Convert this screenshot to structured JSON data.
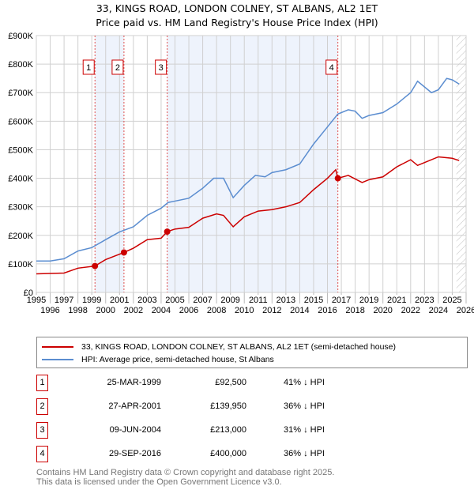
{
  "chart_data": {
    "type": "line",
    "title": "33, KINGS ROAD, LONDON COLNEY, ST ALBANS, AL2 1ET",
    "subtitle": "Price paid vs. HM Land Registry's House Price Index (HPI)",
    "xlim": [
      1995,
      2026
    ],
    "ylim": [
      0,
      900000
    ],
    "yticks": [
      {
        "v": 0,
        "l": "£0"
      },
      {
        "v": 100000,
        "l": "£100K"
      },
      {
        "v": 200000,
        "l": "£200K"
      },
      {
        "v": 300000,
        "l": "£300K"
      },
      {
        "v": 400000,
        "l": "£400K"
      },
      {
        "v": 500000,
        "l": "£500K"
      },
      {
        "v": 600000,
        "l": "£600K"
      },
      {
        "v": 700000,
        "l": "£700K"
      },
      {
        "v": 800000,
        "l": "£800K"
      },
      {
        "v": 900000,
        "l": "£900K"
      }
    ],
    "xticks": [
      "1995",
      "1996",
      "1997",
      "1998",
      "1999",
      "2000",
      "2001",
      "2002",
      "2003",
      "2004",
      "2005",
      "2006",
      "2007",
      "2008",
      "2009",
      "2010",
      "2011",
      "2012",
      "2013",
      "2014",
      "2015",
      "2016",
      "2017",
      "2018",
      "2019",
      "2020",
      "2021",
      "2022",
      "2023",
      "2024",
      "2025",
      "2026"
    ],
    "grid": true,
    "series": [
      {
        "name": "33, KINGS ROAD, LONDON COLNEY, ST ALBANS, AL2 1ET (semi-detached house)",
        "color": "#cc0000",
        "x": [
          1995,
          1997,
          1998,
          1999.23,
          2000,
          2001.32,
          2002,
          2003,
          2004,
          2004.44,
          2005,
          2006,
          2007,
          2008,
          2008.5,
          2009.2,
          2010,
          2011,
          2012,
          2013,
          2014,
          2015,
          2016,
          2016.6,
          2016.75,
          2017.5,
          2018.5,
          2019,
          2020,
          2021,
          2022,
          2022.5,
          2023,
          2024,
          2025,
          2025.5
        ],
        "y": [
          65000,
          68000,
          85000,
          92500,
          115000,
          139950,
          155000,
          185000,
          190000,
          213000,
          222000,
          228000,
          260000,
          275000,
          270000,
          230000,
          265000,
          285000,
          290000,
          300000,
          315000,
          360000,
          400000,
          430000,
          400000,
          410000,
          385000,
          395000,
          405000,
          440000,
          465000,
          445000,
          455000,
          475000,
          470000,
          462000
        ]
      },
      {
        "name": "HPI: Average price, semi-detached house, St Albans",
        "color": "#5b8dd0",
        "x": [
          1995,
          1996,
          1997,
          1998,
          1999,
          2000,
          2001,
          2002,
          2003,
          2004,
          2004.5,
          2005,
          2006,
          2007,
          2007.8,
          2008.5,
          2009.2,
          2010,
          2010.8,
          2011.5,
          2012,
          2013,
          2014,
          2015,
          2016,
          2016.75,
          2017.5,
          2018,
          2018.5,
          2019,
          2020,
          2021,
          2022,
          2022.5,
          2023,
          2023.5,
          2024,
          2024.6,
          2025,
          2025.5
        ],
        "y": [
          110000,
          110000,
          118000,
          145000,
          157000,
          185000,
          212000,
          230000,
          270000,
          295000,
          315000,
          320000,
          330000,
          365000,
          400000,
          400000,
          332000,
          375000,
          410000,
          405000,
          420000,
          430000,
          450000,
          520000,
          580000,
          625000,
          640000,
          635000,
          610000,
          620000,
          630000,
          660000,
          700000,
          740000,
          720000,
          700000,
          710000,
          750000,
          745000,
          730000
        ]
      }
    ],
    "sales": [
      {
        "n": "1",
        "x": 1999.23,
        "y": 92500,
        "date": "25-MAR-1999",
        "price": "£92,500",
        "hpi": "41% ↓ HPI"
      },
      {
        "n": "2",
        "x": 2001.32,
        "y": 139950,
        "date": "27-APR-2001",
        "price": "£139,950",
        "hpi": "36% ↓ HPI"
      },
      {
        "n": "3",
        "x": 2004.44,
        "y": 213000,
        "date": "09-JUN-2004",
        "price": "£213,000",
        "hpi": "31% ↓ HPI"
      },
      {
        "n": "4",
        "x": 2016.75,
        "y": 400000,
        "date": "29-SEP-2016",
        "price": "£400,000",
        "hpi": "36% ↓ HPI"
      }
    ],
    "forecast_start": 2025.3
  },
  "footer": {
    "line1": "Contains HM Land Registry data © Crown copyright and database right 2025.",
    "line2": "This data is licensed under the Open Government Licence v3.0."
  }
}
